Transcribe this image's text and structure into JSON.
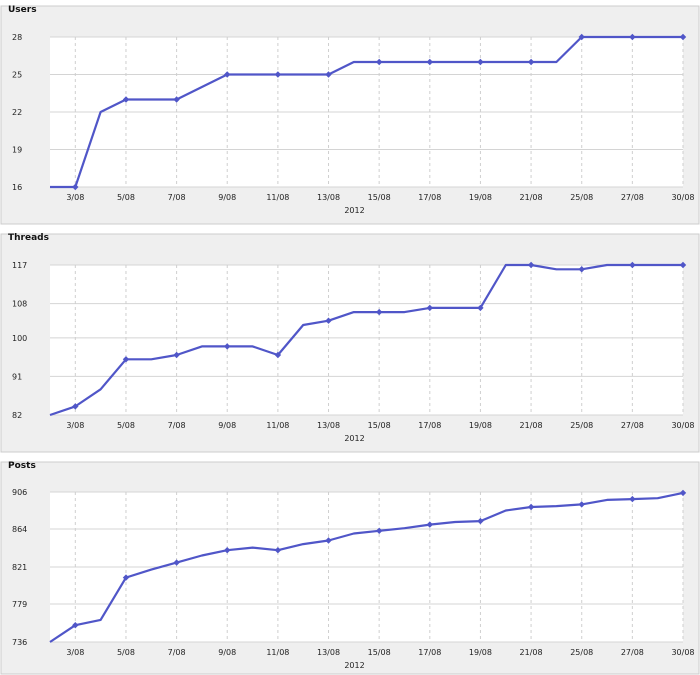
{
  "chart_data": [
    {
      "type": "line",
      "title": "Users",
      "xlabel": "2012",
      "ylabel": "",
      "ylim": [
        16,
        28
      ],
      "yticks": [
        16,
        19,
        22,
        25,
        28
      ],
      "xticks": [
        "3/08",
        "5/08",
        "7/08",
        "9/08",
        "11/08",
        "13/08",
        "15/08",
        "17/08",
        "19/08",
        "21/08",
        "25/08",
        "27/08",
        "30/08"
      ],
      "grid": true,
      "color": "#5056c8",
      "series": [
        {
          "values": [
            16,
            16,
            22,
            23,
            23,
            23,
            24,
            25,
            25,
            25,
            25,
            25,
            26,
            26,
            26,
            26,
            26,
            26,
            26,
            26,
            26,
            28,
            28,
            28,
            28,
            28
          ]
        }
      ],
      "markers": [
        1,
        3,
        5,
        7,
        9,
        11,
        13,
        15,
        17,
        19,
        21,
        23,
        25
      ]
    },
    {
      "type": "line",
      "title": "Threads",
      "xlabel": "2012",
      "ylabel": "",
      "ylim": [
        82,
        117
      ],
      "yticks": [
        82,
        91,
        100,
        108,
        117
      ],
      "xticks": [
        "3/08",
        "5/08",
        "7/08",
        "9/08",
        "11/08",
        "13/08",
        "15/08",
        "17/08",
        "19/08",
        "21/08",
        "25/08",
        "27/08",
        "30/08"
      ],
      "grid": true,
      "color": "#5056c8",
      "series": [
        {
          "values": [
            82,
            84,
            88,
            95,
            95,
            96,
            98,
            98,
            98,
            96,
            103,
            104,
            106,
            106,
            106,
            107,
            107,
            107,
            117,
            117,
            116,
            116,
            117,
            117,
            117,
            117
          ]
        }
      ],
      "markers": [
        1,
        3,
        5,
        7,
        9,
        11,
        13,
        15,
        17,
        19,
        21,
        23,
        25
      ]
    },
    {
      "type": "line",
      "title": "Posts",
      "xlabel": "2012",
      "ylabel": "",
      "ylim": [
        736,
        906
      ],
      "yticks": [
        736,
        779,
        821,
        864,
        906
      ],
      "xticks": [
        "3/08",
        "5/08",
        "7/08",
        "9/08",
        "11/08",
        "13/08",
        "15/08",
        "17/08",
        "19/08",
        "21/08",
        "25/08",
        "27/08",
        "30/08"
      ],
      "grid": true,
      "color": "#5056c8",
      "series": [
        {
          "values": [
            736,
            755,
            761,
            809,
            818,
            826,
            834,
            840,
            843,
            840,
            847,
            851,
            859,
            862,
            865,
            869,
            872,
            873,
            885,
            889,
            890,
            892,
            897,
            898,
            899,
            905
          ]
        }
      ],
      "markers": [
        1,
        3,
        5,
        7,
        9,
        11,
        13,
        15,
        17,
        19,
        21,
        23,
        25
      ]
    }
  ]
}
